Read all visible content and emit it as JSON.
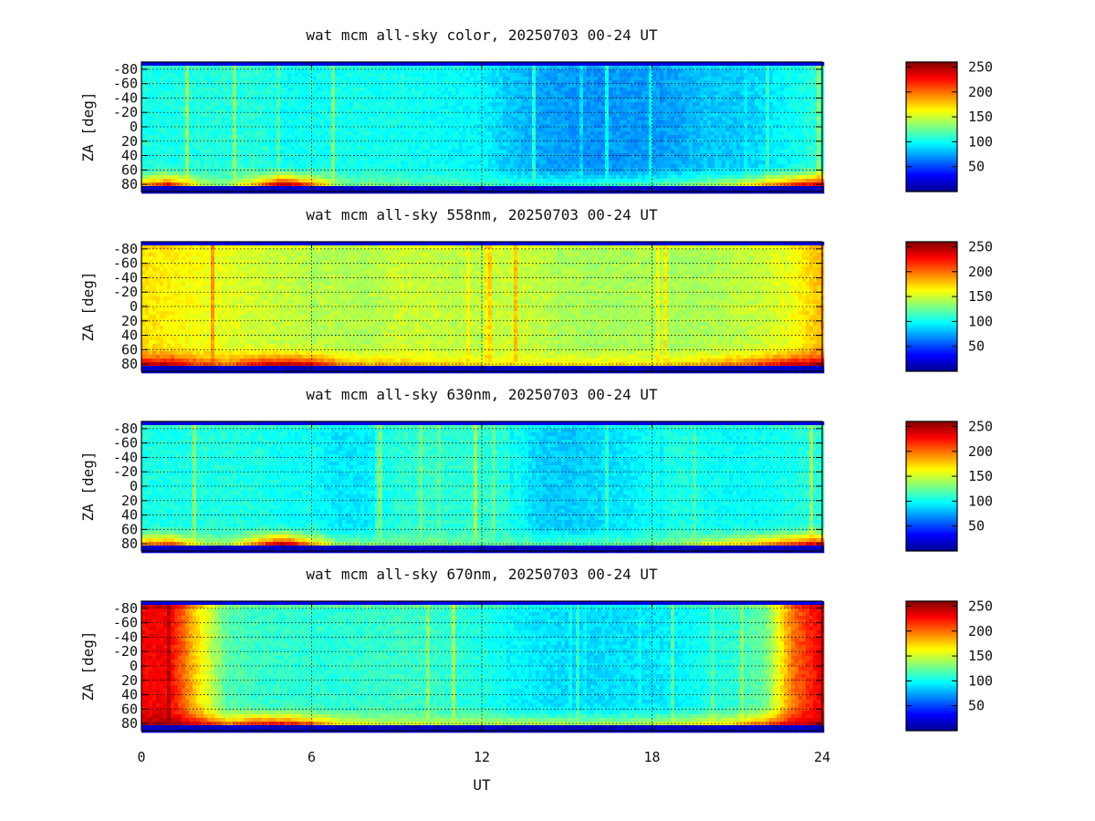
{
  "figure": {
    "xlabel": "UT"
  },
  "colormap": [
    "#00008f",
    "#0000ff",
    "#0080ff",
    "#00ffff",
    "#80ff80",
    "#ffff00",
    "#ff8000",
    "#ff0000",
    "#800000"
  ],
  "chart_data": [
    {
      "type": "heatmap",
      "title": "wat mcm all-sky color, 20250703 00-24 UT",
      "ylabel": "ZA [deg]",
      "xlim": [
        0,
        24
      ],
      "ylim": [
        -90,
        90
      ],
      "xticks": [
        0,
        6,
        12,
        18,
        24
      ],
      "yticks": [
        -80,
        -60,
        -40,
        -20,
        0,
        20,
        40,
        60,
        80
      ],
      "ytick_labels": [
        "-80",
        "-60",
        "-40",
        "-20",
        "0",
        "20",
        "40",
        "60",
        "80"
      ],
      "colorbar": {
        "range": [
          0,
          260
        ],
        "ticks": [
          50,
          100,
          150,
          200,
          250
        ]
      },
      "grid": true,
      "intensity": {
        "time_ut": [
          0,
          1,
          2,
          3,
          4,
          5,
          6,
          7,
          8,
          9,
          10,
          11,
          12,
          13,
          14,
          15,
          16,
          17,
          18,
          19,
          20,
          21,
          22,
          23,
          24
        ],
        "za_deg": [
          -90,
          -80,
          -70,
          -60,
          -50,
          -40,
          -30,
          -20,
          -10,
          0,
          10,
          20,
          30,
          40,
          50,
          60,
          70,
          80,
          90
        ],
        "base_sky": [
          104,
          104,
          106,
          106,
          108,
          100,
          100,
          102,
          102,
          102,
          100,
          98,
          96,
          84,
          76,
          72,
          70,
          72,
          72,
          76,
          84,
          84,
          90,
          100,
          110
        ],
        "horizon_south": [
          180,
          220,
          150,
          130,
          180,
          245,
          200,
          130,
          125,
          125,
          120,
          120,
          115,
          110,
          108,
          108,
          108,
          110,
          115,
          125,
          135,
          150,
          180,
          215,
          235
        ],
        "top_edge": 20
      }
    },
    {
      "type": "heatmap",
      "title": "wat mcm all-sky 558nm, 20250703 00-24 UT",
      "ylabel": "ZA [deg]",
      "xlim": [
        0,
        24
      ],
      "ylim": [
        -90,
        90
      ],
      "xticks": [
        0,
        6,
        12,
        18,
        24
      ],
      "yticks": [
        -80,
        -60,
        -40,
        -20,
        0,
        20,
        40,
        60,
        80
      ],
      "ytick_labels": [
        "-80",
        "-60",
        "-40",
        "-20",
        "0",
        "20",
        "40",
        "60",
        "80"
      ],
      "colorbar": {
        "range": [
          0,
          260
        ],
        "ticks": [
          50,
          100,
          150,
          200,
          250
        ]
      },
      "grid": true,
      "intensity": {
        "time_ut": [
          0,
          1,
          2,
          3,
          4,
          5,
          6,
          7,
          8,
          9,
          10,
          11,
          12,
          13,
          14,
          15,
          16,
          17,
          18,
          19,
          20,
          21,
          22,
          23,
          24
        ],
        "za_deg": [
          -90,
          -80,
          -70,
          -60,
          -50,
          -40,
          -30,
          -20,
          -10,
          0,
          10,
          20,
          30,
          40,
          50,
          60,
          70,
          80,
          90
        ],
        "base_sky": [
          170,
          165,
          160,
          155,
          150,
          148,
          145,
          143,
          142,
          150,
          148,
          146,
          145,
          150,
          146,
          142,
          140,
          140,
          142,
          140,
          142,
          145,
          150,
          160,
          180
        ],
        "horizon_south": [
          235,
          240,
          210,
          195,
          225,
          240,
          230,
          190,
          180,
          180,
          175,
          172,
          170,
          168,
          166,
          166,
          166,
          168,
          170,
          175,
          185,
          195,
          215,
          235,
          245
        ],
        "top_edge": 25
      }
    },
    {
      "type": "heatmap",
      "title": "wat mcm all-sky 630nm, 20250703 00-24 UT",
      "ylabel": "ZA [deg]",
      "xlim": [
        0,
        24
      ],
      "ylim": [
        -90,
        90
      ],
      "xticks": [
        0,
        6,
        12,
        18,
        24
      ],
      "yticks": [
        -80,
        -60,
        -40,
        -20,
        0,
        20,
        40,
        60,
        80
      ],
      "ytick_labels": [
        "-80",
        "-60",
        "-40",
        "-20",
        "0",
        "20",
        "40",
        "60",
        "80"
      ],
      "colorbar": {
        "range": [
          0,
          260
        ],
        "ticks": [
          50,
          100,
          150,
          200,
          250
        ]
      },
      "grid": true,
      "intensity": {
        "time_ut": [
          0,
          1,
          2,
          3,
          4,
          5,
          6,
          7,
          8,
          9,
          10,
          11,
          12,
          13,
          14,
          15,
          16,
          17,
          18,
          19,
          20,
          21,
          22,
          23,
          24
        ],
        "za_deg": [
          -90,
          -80,
          -70,
          -60,
          -50,
          -40,
          -30,
          -20,
          -10,
          0,
          10,
          20,
          30,
          40,
          50,
          60,
          70,
          80,
          90
        ],
        "base_sky": [
          104,
          104,
          105,
          106,
          104,
          100,
          100,
          90,
          94,
          108,
          110,
          108,
          110,
          106,
          86,
          84,
          88,
          92,
          100,
          106,
          100,
          98,
          100,
          104,
          110
        ],
        "horizon_south": [
          190,
          205,
          150,
          135,
          190,
          245,
          180,
          135,
          128,
          130,
          128,
          126,
          124,
          120,
          118,
          118,
          118,
          120,
          124,
          135,
          150,
          165,
          185,
          210,
          230
        ],
        "top_edge": 30
      }
    },
    {
      "type": "heatmap",
      "title": "wat mcm all-sky 670nm, 20250703 00-24 UT",
      "ylabel": "ZA [deg]",
      "xlim": [
        0,
        24
      ],
      "ylim": [
        -90,
        90
      ],
      "xticks": [
        0,
        6,
        12,
        18,
        24
      ],
      "yticks": [
        -80,
        -60,
        -40,
        -20,
        0,
        20,
        40,
        60,
        80
      ],
      "ytick_labels": [
        "-80",
        "-60",
        "-40",
        "-20",
        "0",
        "20",
        "40",
        "60",
        "80"
      ],
      "colorbar": {
        "range": [
          0,
          260
        ],
        "ticks": [
          50,
          100,
          150,
          200,
          250
        ]
      },
      "grid": true,
      "intensity": {
        "time_ut": [
          0,
          1,
          2,
          3,
          4,
          5,
          6,
          7,
          8,
          9,
          10,
          11,
          12,
          13,
          14,
          15,
          16,
          17,
          18,
          19,
          20,
          21,
          22,
          23,
          24
        ],
        "za_deg": [
          -90,
          -80,
          -70,
          -60,
          -50,
          -40,
          -30,
          -20,
          -10,
          0,
          10,
          20,
          30,
          40,
          50,
          60,
          70,
          80,
          90
        ],
        "base_sky": [
          228,
          230,
          170,
          120,
          112,
          110,
          108,
          108,
          110,
          112,
          112,
          108,
          104,
          98,
          92,
          88,
          88,
          90,
          92,
          96,
          104,
          110,
          125,
          200,
          232
        ],
        "horizon_south": [
          250,
          250,
          230,
          190,
          215,
          220,
          200,
          160,
          150,
          148,
          146,
          144,
          142,
          140,
          138,
          138,
          138,
          140,
          142,
          148,
          158,
          170,
          200,
          235,
          245
        ],
        "top_edge": 40
      }
    }
  ]
}
